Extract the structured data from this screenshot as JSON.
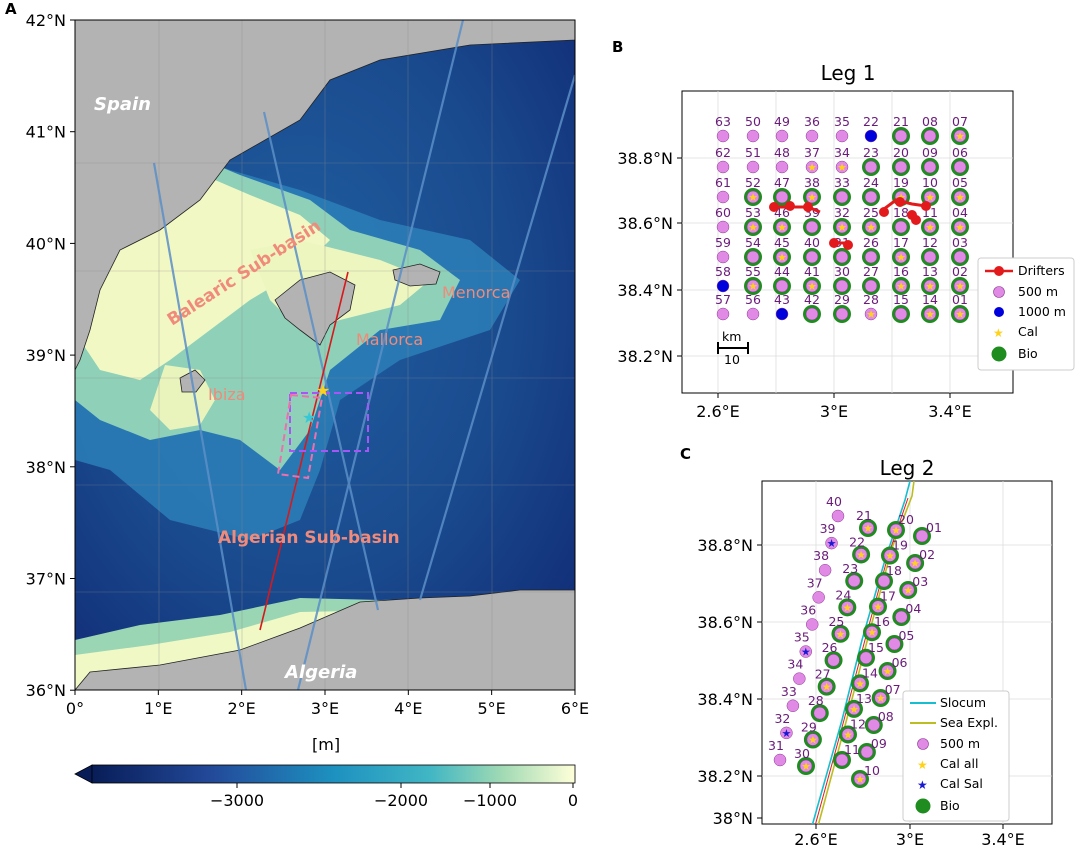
{
  "panels": {
    "a": "A",
    "b": "B",
    "c": "C"
  },
  "map_a": {
    "y_ticks": [
      "42°N",
      "41°N",
      "40°N",
      "39°N",
      "38°N",
      "37°N",
      "36°N"
    ],
    "x_ticks": [
      "0°",
      "1°E",
      "2°E",
      "3°E",
      "4°E",
      "5°E",
      "6°E"
    ],
    "labels": {
      "spain": "Spain",
      "algeria": "Algeria",
      "balearic": "Balearic Sub-basin",
      "algerian": "Algerian Sub-basin",
      "menorca": "Menorca",
      "mallorca": "Mallorca",
      "ibiza": "Ibiza"
    },
    "colorbar": {
      "unit": "[m]",
      "ticks": [
        "−3000",
        "−2000",
        "−1000",
        "0"
      ]
    }
  },
  "leg1": {
    "title": "Leg 1",
    "y_ticks": [
      "38.8°N",
      "38.6°N",
      "38.4°N",
      "38.2°N"
    ],
    "x_ticks": [
      "2.6°E",
      "3°E",
      "3.4°E"
    ],
    "scale_label": "km",
    "scale_value": "10",
    "rows": [
      [
        "63",
        "50",
        "49",
        "36",
        "35",
        "22",
        "21",
        "08",
        "07"
      ],
      [
        "62",
        "51",
        "48",
        "37",
        "34",
        "23",
        "20",
        "09",
        "06"
      ],
      [
        "61",
        "52",
        "47",
        "38",
        "33",
        "24",
        "19",
        "10",
        "05"
      ],
      [
        "60",
        "53",
        "46",
        "39",
        "32",
        "25",
        "18",
        "11",
        "04"
      ],
      [
        "59",
        "54",
        "45",
        "40",
        "31",
        "26",
        "17",
        "12",
        "03"
      ],
      [
        "58",
        "55",
        "44",
        "41",
        "30",
        "27",
        "16",
        "13",
        "02"
      ],
      [
        "57",
        "56",
        "43",
        "42",
        "29",
        "28",
        "15",
        "14",
        "01"
      ]
    ],
    "legend": [
      "Drifters",
      "500 m",
      "1000 m",
      "Cal",
      "Bio"
    ]
  },
  "leg2": {
    "title": "Leg 2",
    "y_ticks": [
      "38.8°N",
      "38.6°N",
      "38.4°N",
      "38.2°N",
      "38°N"
    ],
    "x_ticks": [
      "2.6°E",
      "3°E",
      "3.4°E"
    ],
    "stations": [
      "01",
      "02",
      "03",
      "04",
      "05",
      "06",
      "07",
      "08",
      "09",
      "10",
      "11",
      "12",
      "13",
      "14",
      "15",
      "16",
      "17",
      "18",
      "19",
      "20",
      "21",
      "22",
      "23",
      "24",
      "25",
      "26",
      "27",
      "28",
      "29",
      "30",
      "31",
      "32",
      "33",
      "34",
      "35",
      "36",
      "37",
      "38",
      "39",
      "40"
    ],
    "legend": [
      "Slocum",
      "Sea Expl.",
      "500 m",
      "Cal all",
      "Cal Sal",
      "Bio"
    ]
  },
  "colors": {
    "land": "#b3b3b3",
    "shallow": "#ffffcc",
    "deep": "#0d2a6e",
    "station": "#e08ae6",
    "deep_station": "#0000dd",
    "bio": "#1f8c1f",
    "cal": "#ffd21a",
    "drifter": "#e31a1c",
    "slocum": "#17becf",
    "sea_expl": "#bcbd22"
  }
}
